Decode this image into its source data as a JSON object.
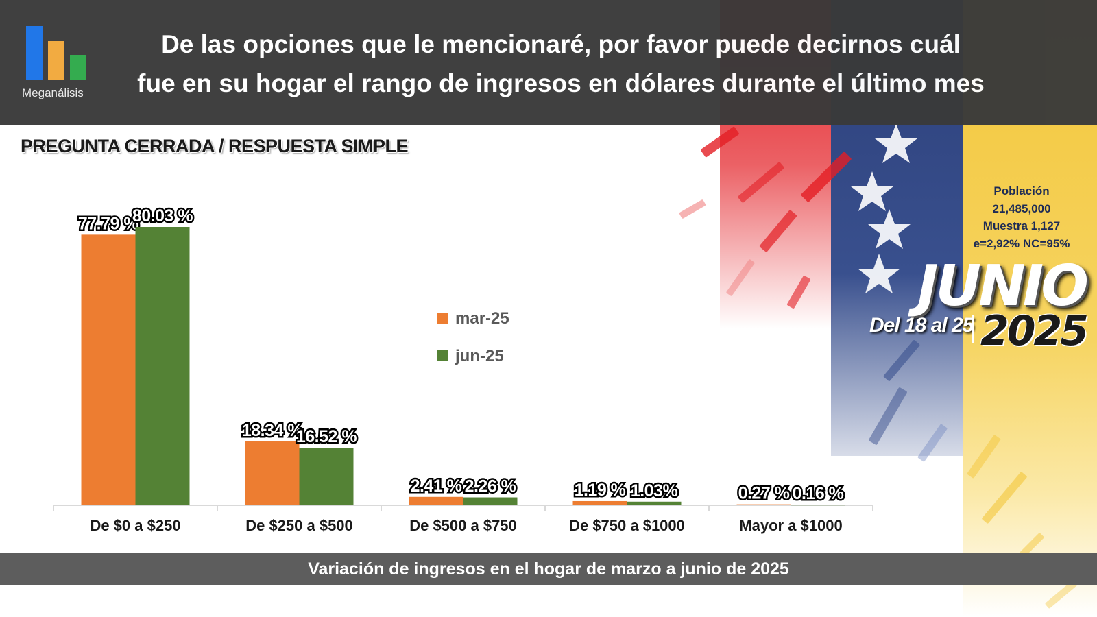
{
  "brand": {
    "name": "Meganálisis",
    "colors": [
      "#1a73e8",
      "#f2a93b",
      "#2eaa4a"
    ]
  },
  "header": {
    "title_line1": "De las opciones que le mencionaré, por favor puede decirnos cuál",
    "title_line2": "fue en su hogar el rango de ingresos en dólares durante el último mes"
  },
  "subtitle": "PREGUNTA CERRADA / RESPUESTA SIMPLE",
  "stats": {
    "line1": "Población",
    "line2": "21,485,000",
    "line3": "Muestra 1,127",
    "line4": "e=2,92%  NC=95%"
  },
  "date_badge": {
    "month": "JUNIO",
    "range": "Del 18 al 25",
    "year": "2025"
  },
  "footer": "Variación de ingresos en el hogar de marzo a junio de 2025",
  "chart_data": {
    "type": "bar",
    "categories": [
      "De $0 a $250",
      "De $250 a $500",
      "De $500 a $750",
      "De $750 a $1000",
      "Mayor a $1000"
    ],
    "series": [
      {
        "name": "mar-25",
        "color": "#ed7d31",
        "values": [
          77.79,
          18.34,
          2.41,
          1.19,
          0.27
        ],
        "labels": [
          "77.79 %",
          "18.34 %",
          "2.41 %",
          "1.19 %",
          "0.27 %"
        ]
      },
      {
        "name": "jun-25",
        "color": "#548235",
        "values": [
          80.03,
          16.52,
          2.26,
          1.03,
          0.16
        ],
        "labels": [
          "80.03 %",
          "16.52 %",
          "2.26 %",
          "1.03%",
          "0.16 %"
        ]
      }
    ],
    "ylim": [
      0,
      80.03
    ],
    "legend_position": "center",
    "grid": false
  }
}
